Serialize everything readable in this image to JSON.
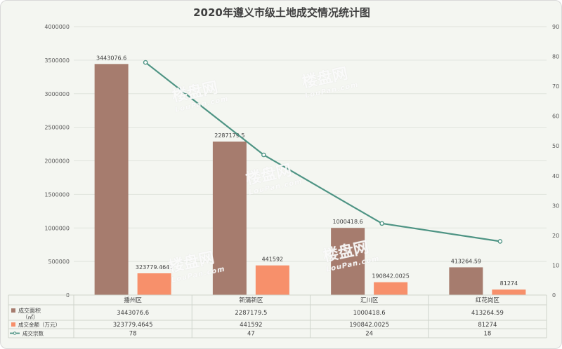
{
  "chart_data": {
    "type": "bar",
    "title": "2020年遵义市级土地成交情况统计图",
    "categories": [
      "播州区",
      "新蒲新区",
      "汇川区",
      "红花岗区"
    ],
    "series": [
      {
        "name": "成交面积（㎡）",
        "kind": "bar",
        "axis": "left",
        "color": "#a67c6e",
        "values": [
          3443076.6,
          2287179.5,
          1000418.6,
          413264.59
        ],
        "labels": [
          "3443076.6",
          "2287179.5",
          "1000418.6",
          "413264.59"
        ]
      },
      {
        "name": "成交金额（万元）",
        "kind": "bar",
        "axis": "left",
        "color": "#f7906b",
        "values": [
          323779.4645,
          441592,
          190842.0025,
          81274
        ],
        "labels": [
          "323779.4645",
          "441592",
          "190842.0025",
          "81274"
        ]
      },
      {
        "name": "成交宗数",
        "kind": "line",
        "axis": "right",
        "color": "#4e9484",
        "values": [
          78,
          47,
          24,
          18
        ],
        "labels": [
          "78",
          "47",
          "24",
          "18"
        ]
      }
    ],
    "y_left": {
      "min": 0,
      "max": 4000000,
      "step": 500000,
      "ticks": [
        "0",
        "500000",
        "1000000",
        "1500000",
        "2000000",
        "2500000",
        "3000000",
        "3500000",
        "4000000"
      ]
    },
    "y_right": {
      "min": 0,
      "max": 90,
      "step": 10,
      "ticks": [
        "0",
        "10",
        "20",
        "30",
        "40",
        "50",
        "60",
        "70",
        "80",
        "90"
      ]
    },
    "grid": true,
    "legend": "data-table-below"
  },
  "watermark": {
    "text": "楼盘网",
    "sub": "LouPan.com"
  }
}
